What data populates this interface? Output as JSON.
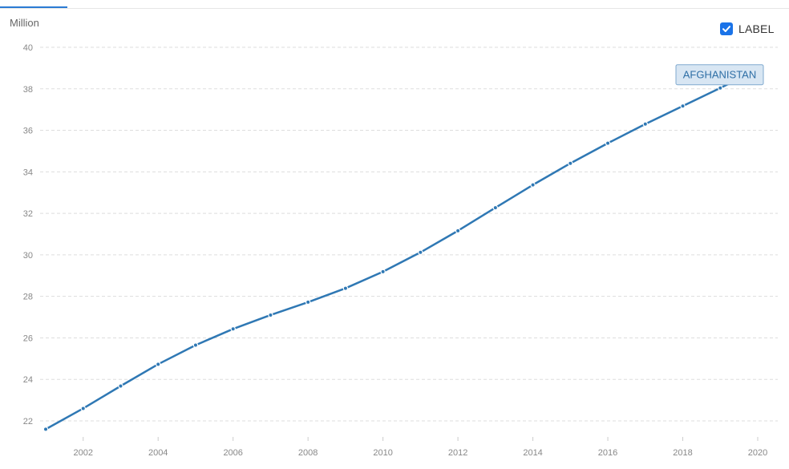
{
  "header": {
    "y_unit": "Million"
  },
  "label_toggle": {
    "text": "LABEL",
    "checked": true
  },
  "colors": {
    "series": "#2f78b4",
    "grid": "#dddddd",
    "tick_text": "#888888",
    "tag_bg": "#d8e6f3",
    "tag_border": "#7fa9cf"
  },
  "chart_data": {
    "type": "line",
    "xlabel": "",
    "ylabel": "Million",
    "xlim": [
      2001,
      2020
    ],
    "ylim": [
      21,
      40
    ],
    "x_ticks": [
      2002,
      2004,
      2006,
      2008,
      2010,
      2012,
      2014,
      2016,
      2018,
      2020
    ],
    "y_ticks": [
      22,
      24,
      26,
      28,
      30,
      32,
      34,
      36,
      38,
      40
    ],
    "grid": true,
    "series": [
      {
        "name": "AFGHANISTAN",
        "x": [
          2001,
          2002,
          2003,
          2004,
          2005,
          2006,
          2007,
          2008,
          2009,
          2010,
          2011,
          2012,
          2013,
          2014,
          2015,
          2016,
          2017,
          2018,
          2019,
          2020
        ],
        "values": [
          21.6,
          22.6,
          23.68,
          24.73,
          25.65,
          26.43,
          27.1,
          27.72,
          28.39,
          29.19,
          30.12,
          31.16,
          32.27,
          33.37,
          34.41,
          35.38,
          36.3,
          37.17,
          38.04,
          38.93
        ]
      }
    ]
  }
}
